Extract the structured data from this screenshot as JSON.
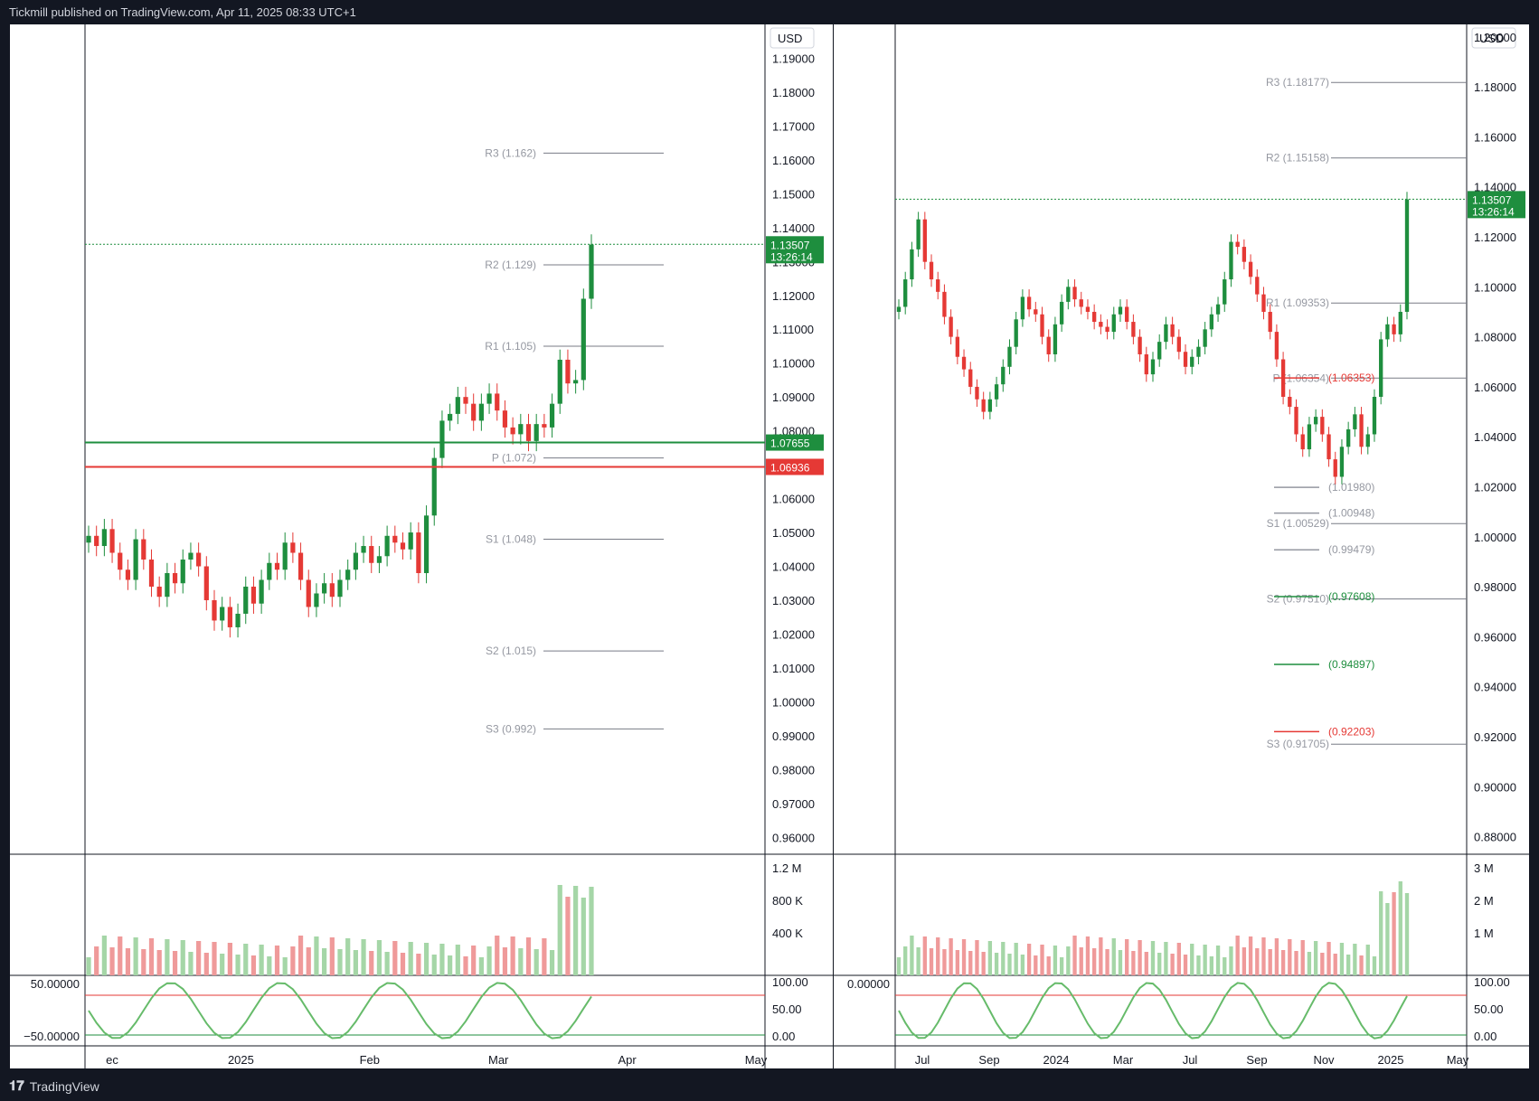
{
  "header": "Tickmill published on TradingView.com, Apr 11, 2025 08:33 UTC+1",
  "footer": "TradingView",
  "currency": "USD",
  "colors": {
    "up": "#089981",
    "down": "#f23645",
    "green": "#1e8e3e",
    "red": "#e53935",
    "blue": "#1e56b0"
  },
  "chart_data": [
    {
      "type": "candlestick",
      "panel": "left",
      "price_axis": {
        "min": 0.955,
        "max": 1.2,
        "ticks": [
          "1.19000",
          "1.18000",
          "1.17000",
          "1.16000",
          "1.15000",
          "1.14000",
          "1.13000",
          "1.12000",
          "1.11000",
          "1.10000",
          "1.09000",
          "1.08000",
          "1.07000",
          "1.06000",
          "1.05000",
          "1.04000",
          "1.03000",
          "1.02000",
          "1.01000",
          "1.00000",
          "0.99000",
          "0.98000",
          "0.97000",
          "0.96000"
        ]
      },
      "time_labels": [
        "ec",
        "2025",
        "Feb",
        "Mar",
        "Apr",
        "May"
      ],
      "pivots": [
        {
          "label": "R3 (1.162)",
          "value": 1.162
        },
        {
          "label": "R2 (1.129)",
          "value": 1.129
        },
        {
          "label": "R1 (1.105)",
          "value": 1.105
        },
        {
          "label": "P (1.072)",
          "value": 1.072
        },
        {
          "label": "S1 (1.048)",
          "value": 1.048
        },
        {
          "label": "S2 (1.015)",
          "value": 1.015
        },
        {
          "label": "S3 (0.992)",
          "value": 0.992
        }
      ],
      "price_badges": [
        {
          "text": "1.13507",
          "sub": "13:26:14",
          "value": 1.13507,
          "color": "#1e8e3e"
        },
        {
          "text": "1.07655",
          "value": 1.07655,
          "color": "#1e8e3e"
        },
        {
          "text": "1.06936",
          "value": 1.06936,
          "color": "#e53935"
        }
      ],
      "volume_axis": [
        "1.2 M",
        "800 K",
        "400 K"
      ],
      "osc_axis_left": [
        "50.00000",
        "−50.00000"
      ],
      "osc_axis_right": [
        "100.00",
        "50.00",
        "0.00"
      ],
      "closes": [
        1.049,
        1.046,
        1.051,
        1.044,
        1.039,
        1.036,
        1.048,
        1.042,
        1.034,
        1.031,
        1.038,
        1.035,
        1.042,
        1.044,
        1.04,
        1.03,
        1.024,
        1.028,
        1.022,
        1.026,
        1.034,
        1.029,
        1.036,
        1.041,
        1.039,
        1.047,
        1.044,
        1.036,
        1.028,
        1.032,
        1.035,
        1.031,
        1.036,
        1.039,
        1.044,
        1.046,
        1.041,
        1.043,
        1.049,
        1.047,
        1.045,
        1.05,
        1.038,
        1.055,
        1.072,
        1.083,
        1.085,
        1.09,
        1.088,
        1.083,
        1.088,
        1.091,
        1.086,
        1.081,
        1.079,
        1.082,
        1.077,
        1.082,
        1.081,
        1.088,
        1.101,
        1.094,
        1.095,
        1.119,
        1.135
      ]
    },
    {
      "type": "candlestick",
      "panel": "right",
      "price_axis": {
        "min": 0.873,
        "max": 1.205,
        "ticks": [
          "1.20000",
          "1.18000",
          "1.16000",
          "1.14000",
          "1.12000",
          "1.10000",
          "1.08000",
          "1.06000",
          "1.04000",
          "1.02000",
          "1.00000",
          "0.98000",
          "0.96000",
          "0.94000",
          "0.92000",
          "0.90000",
          "0.88000"
        ]
      },
      "time_labels": [
        "Jul",
        "Sep",
        "2024",
        "Mar",
        "Jul",
        "Sep",
        "Nov",
        "2025",
        "May"
      ],
      "pivots": [
        {
          "label": "R3 (1.18177)",
          "value": 1.18177
        },
        {
          "label": "R2 (1.15158)",
          "value": 1.15158
        },
        {
          "label": "R1 (1.09353)",
          "value": 1.09353
        },
        {
          "label": "P (1.06354)",
          "value": 1.0635
        },
        {
          "label": "S1 (1.00529)",
          "value": 1.00529
        },
        {
          "label": "S2 (0.97510)",
          "value": 0.9751
        },
        {
          "label": "S3 (0.91705)",
          "value": 0.91705
        }
      ],
      "fib_labels": [
        {
          "text": "(1.06353)",
          "value": 1.06353,
          "color": "#e53935"
        },
        {
          "text": "(1.01980)",
          "value": 1.0198,
          "color": "#9598a1"
        },
        {
          "text": "(1.00948)",
          "value": 1.00948,
          "color": "#9598a1"
        },
        {
          "text": "(0.99479)",
          "value": 0.99479,
          "color": "#9598a1"
        },
        {
          "text": "(0.97608)",
          "value": 0.97608,
          "color": "#1e8e3e"
        },
        {
          "text": "(0.94897)",
          "value": 0.94897,
          "color": "#1e8e3e"
        },
        {
          "text": "(0.92203)",
          "value": 0.92203,
          "color": "#e53935"
        }
      ],
      "price_badges": [
        {
          "text": "1.13507",
          "sub": "13:26:14",
          "value": 1.13507,
          "color": "#1e8e3e"
        }
      ],
      "volume_axis": [
        "3 M",
        "2 M",
        "1 M"
      ],
      "osc_axis_left": [
        "0.00000"
      ],
      "osc_axis_right": [
        "100.00",
        "50.00",
        "0.00"
      ],
      "closes": [
        1.092,
        1.103,
        1.115,
        1.127,
        1.11,
        1.103,
        1.098,
        1.088,
        1.08,
        1.072,
        1.067,
        1.06,
        1.055,
        1.05,
        1.055,
        1.061,
        1.068,
        1.076,
        1.087,
        1.096,
        1.091,
        1.089,
        1.08,
        1.073,
        1.085,
        1.094,
        1.1,
        1.095,
        1.092,
        1.09,
        1.086,
        1.084,
        1.082,
        1.089,
        1.092,
        1.086,
        1.08,
        1.073,
        1.065,
        1.071,
        1.078,
        1.085,
        1.08,
        1.074,
        1.068,
        1.072,
        1.076,
        1.083,
        1.089,
        1.093,
        1.103,
        1.118,
        1.116,
        1.11,
        1.104,
        1.097,
        1.09,
        1.082,
        1.071,
        1.056,
        1.052,
        1.041,
        1.035,
        1.045,
        1.048,
        1.041,
        1.031,
        1.024,
        1.036,
        1.043,
        1.049,
        1.036,
        1.041,
        1.056,
        1.079,
        1.085,
        1.081,
        1.09,
        1.135
      ]
    }
  ]
}
